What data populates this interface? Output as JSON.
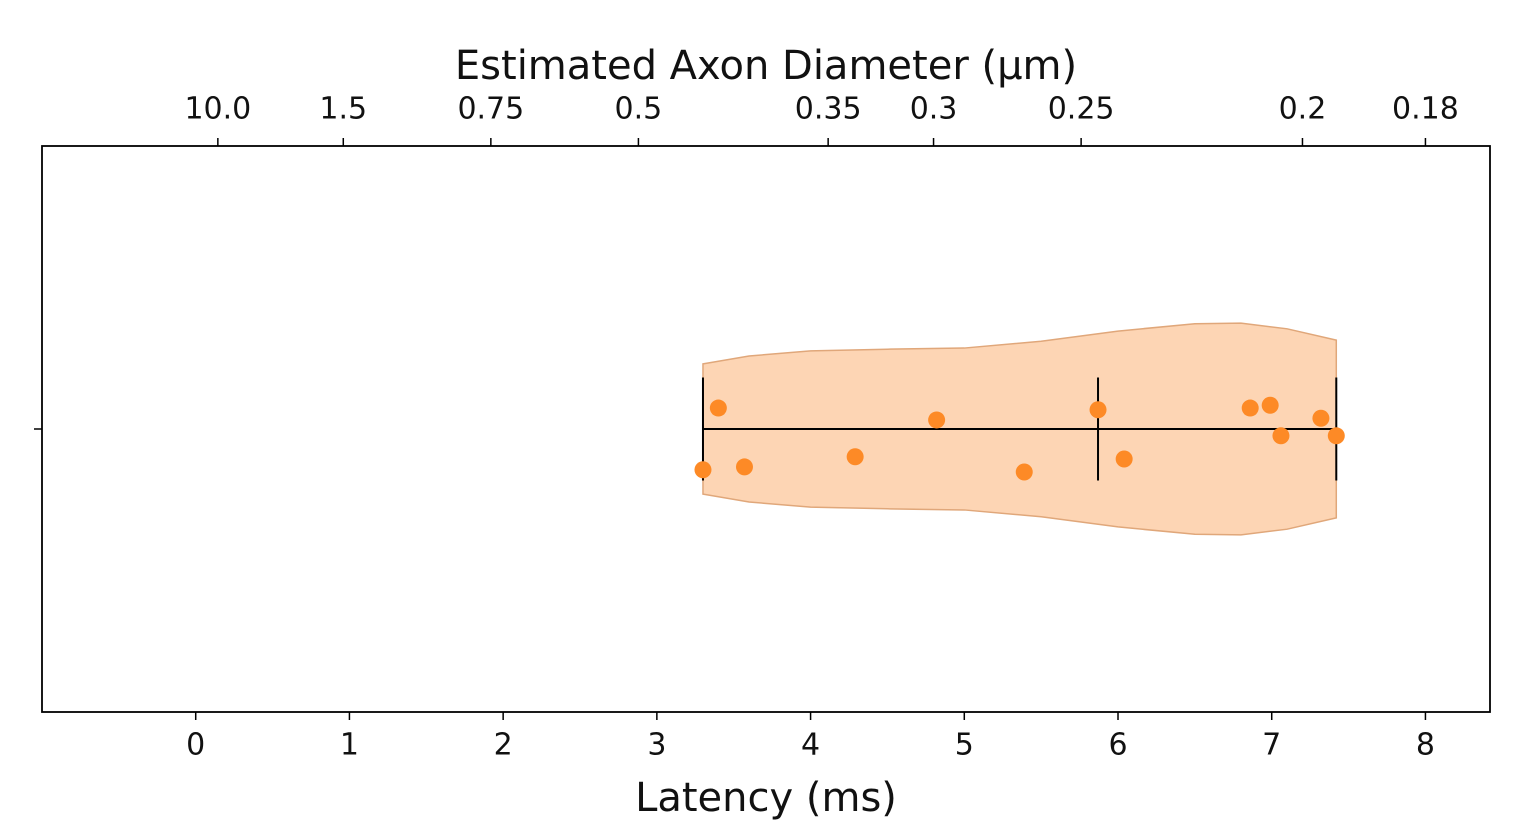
{
  "chart_data": {
    "type": "violin",
    "orientation": "horizontal",
    "xlabel": "Latency (ms)",
    "x2label": "Estimated Axon Diameter (μm)",
    "xlim": [
      -1.0,
      8.42
    ],
    "xticks": [
      0,
      1,
      2,
      3,
      4,
      5,
      6,
      7,
      8
    ],
    "x2scale": "reciprocal",
    "x2k": 1.44,
    "x2ticks": [
      {
        "value": 10,
        "label": "10.0"
      },
      1.5,
      0.75,
      0.5,
      0.35,
      0.3,
      0.25,
      0.2,
      0.18
    ],
    "ylim": [
      0.5,
      1.5
    ],
    "yticks": [
      1
    ],
    "violin": {
      "color": "#fdd5b4",
      "edge_color": "#e0a77a",
      "x": [
        3.3,
        3.6,
        4.0,
        4.5,
        5.0,
        5.5,
        6.0,
        6.5,
        6.8,
        7.1,
        7.42
      ],
      "halfwidth": [
        0.115,
        0.129,
        0.138,
        0.141,
        0.143,
        0.155,
        0.173,
        0.186,
        0.187,
        0.177,
        0.157
      ]
    },
    "stats": {
      "min": 3.3,
      "median": 5.87,
      "max": 7.42,
      "halfheight": 0.091,
      "color": "#000000"
    },
    "points": {
      "color": "#fd8a26",
      "x": [
        3.3,
        3.4,
        3.57,
        4.29,
        4.82,
        5.39,
        5.87,
        6.04,
        6.86,
        6.99,
        7.06,
        7.32,
        7.42
      ],
      "y": [
        0.928,
        1.037,
        0.933,
        0.951,
        1.016,
        0.924,
        1.034,
        0.947,
        1.037,
        1.042,
        0.988,
        1.019,
        0.988
      ]
    }
  }
}
